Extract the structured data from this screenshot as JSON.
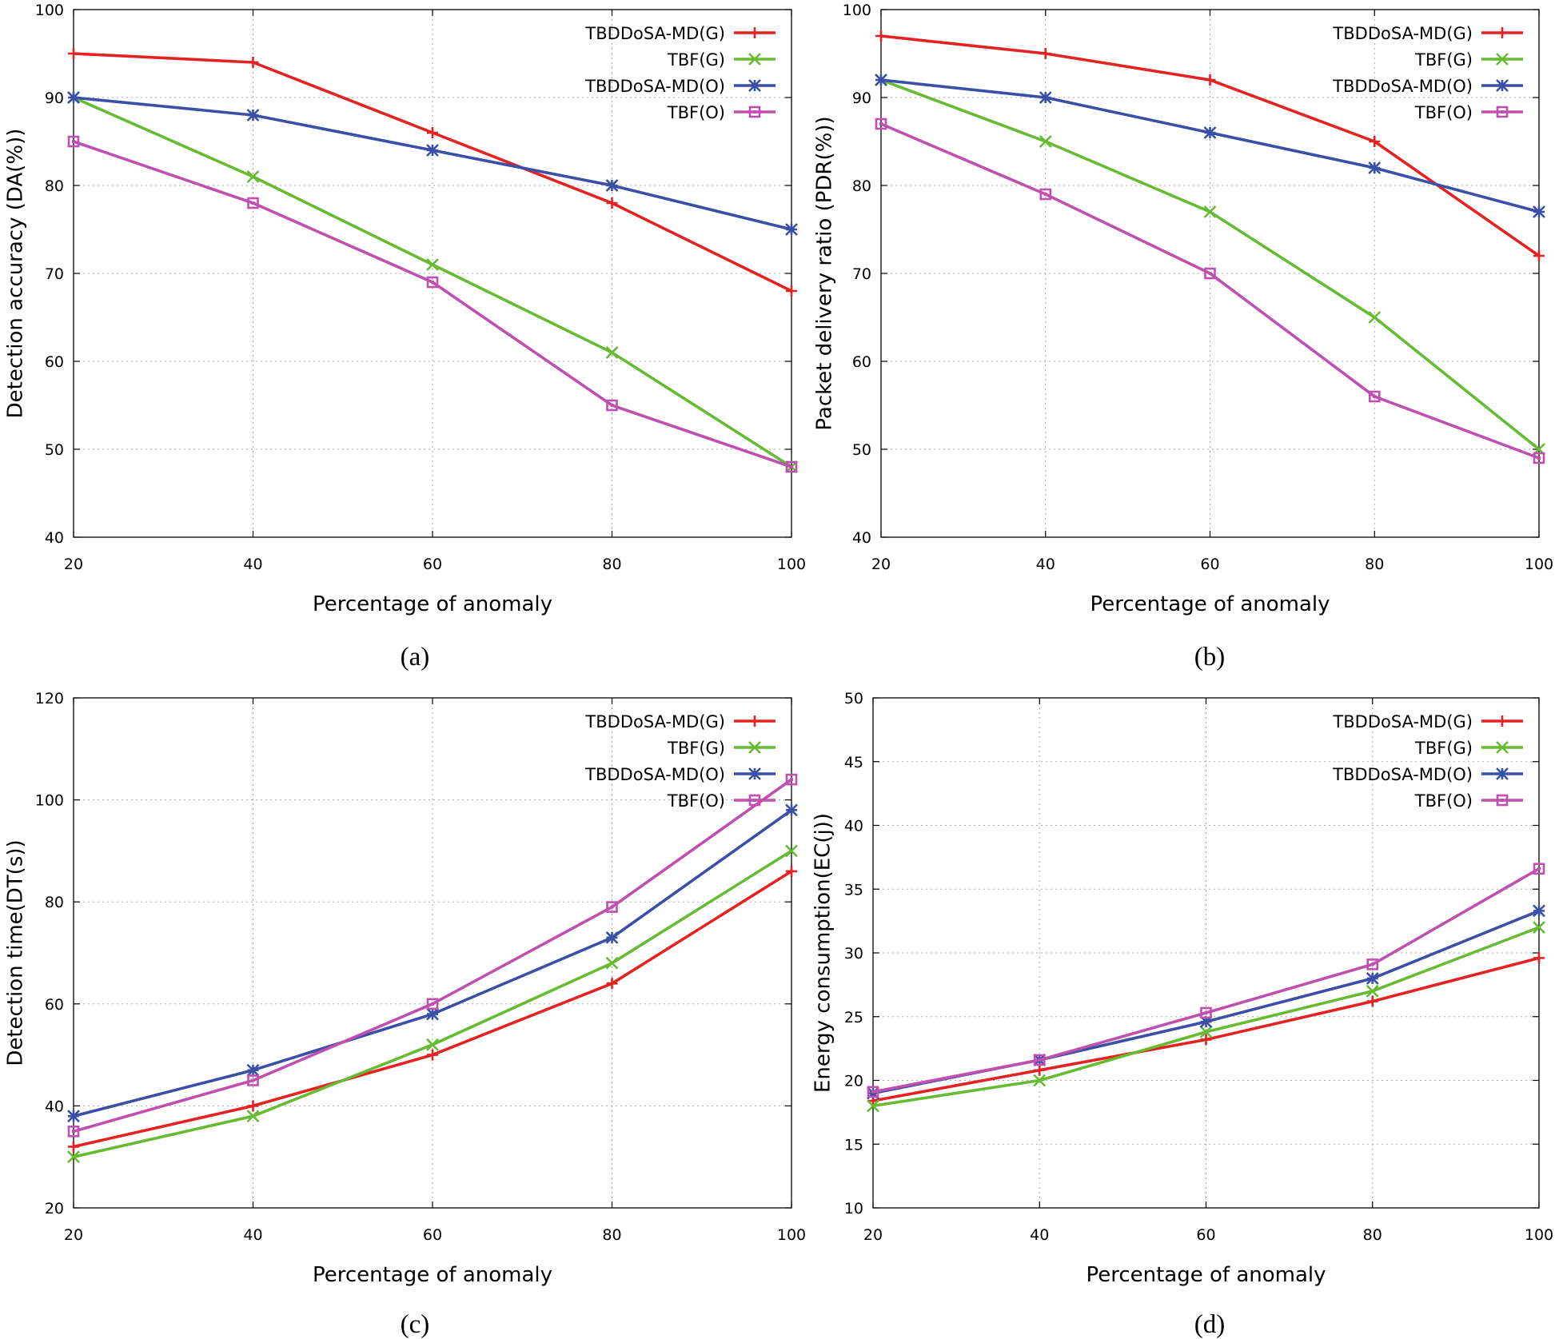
{
  "chart_data": [
    {
      "id": "a",
      "type": "line",
      "caption": "(a)",
      "xlabel": "Percentage of anomaly",
      "ylabel": "Detection accuracy (DA(%))",
      "x": [
        20,
        40,
        60,
        80,
        100
      ],
      "xticks": [
        "20",
        "40",
        "60",
        "80",
        "100"
      ],
      "yticks": [
        "40",
        "50",
        "60",
        "70",
        "80",
        "90",
        "100"
      ],
      "xlim": [
        20,
        100
      ],
      "ylim": [
        40,
        100
      ],
      "grid": true,
      "legend": "top-right",
      "series": [
        {
          "name": "TBDDoSA-MD(G)",
          "marker": "plus",
          "color": "#e52222",
          "values": [
            95,
            94,
            86,
            78,
            68
          ]
        },
        {
          "name": "TBF(G)",
          "marker": "cross",
          "color": "#66bb33",
          "values": [
            90,
            81,
            71,
            61,
            48
          ]
        },
        {
          "name": "TBDDoSA-MD(O)",
          "marker": "star",
          "color": "#3a4fa6",
          "values": [
            90,
            88,
            84,
            80,
            75
          ]
        },
        {
          "name": "TBF(O)",
          "marker": "square",
          "color": "#c050b0",
          "values": [
            85,
            78,
            69,
            55,
            48
          ]
        }
      ]
    },
    {
      "id": "b",
      "type": "line",
      "caption": "(b)",
      "xlabel": "Percentage of anomaly",
      "ylabel": "Packet delivery ratio (PDR(%))",
      "x": [
        20,
        40,
        60,
        80,
        100
      ],
      "xticks": [
        "20",
        "40",
        "60",
        "80",
        "100"
      ],
      "yticks": [
        "40",
        "50",
        "60",
        "70",
        "80",
        "90",
        "100"
      ],
      "xlim": [
        20,
        100
      ],
      "ylim": [
        40,
        100
      ],
      "grid": true,
      "legend": "top-right",
      "series": [
        {
          "name": "TBDDoSA-MD(G)",
          "marker": "plus",
          "color": "#e52222",
          "values": [
            97,
            95,
            92,
            85,
            72
          ]
        },
        {
          "name": "TBF(G)",
          "marker": "cross",
          "color": "#66bb33",
          "values": [
            92,
            85,
            77,
            65,
            50
          ]
        },
        {
          "name": "TBDDoSA-MD(O)",
          "marker": "star",
          "color": "#3a4fa6",
          "values": [
            92,
            90,
            86,
            82,
            77
          ]
        },
        {
          "name": "TBF(O)",
          "marker": "square",
          "color": "#c050b0",
          "values": [
            87,
            79,
            70,
            56,
            49
          ]
        }
      ]
    },
    {
      "id": "c",
      "type": "line",
      "caption": "(c)",
      "xlabel": "Percentage of anomaly",
      "ylabel": "Detection time(DT(s))",
      "x": [
        20,
        40,
        60,
        80,
        100
      ],
      "xticks": [
        "20",
        "40",
        "60",
        "80",
        "100"
      ],
      "yticks": [
        "20",
        "40",
        "60",
        "80",
        "100",
        "120"
      ],
      "xlim": [
        20,
        100
      ],
      "ylim": [
        20,
        120
      ],
      "grid": true,
      "legend": "top-right",
      "series": [
        {
          "name": "TBDDoSA-MD(G)",
          "marker": "plus",
          "color": "#e52222",
          "values": [
            32,
            40,
            50,
            64,
            86
          ]
        },
        {
          "name": "TBF(G)",
          "marker": "cross",
          "color": "#66bb33",
          "values": [
            30,
            38,
            52,
            68,
            90
          ]
        },
        {
          "name": "TBDDoSA-MD(O)",
          "marker": "star",
          "color": "#3a4fa6",
          "values": [
            38,
            47,
            58,
            73,
            98
          ]
        },
        {
          "name": "TBF(O)",
          "marker": "square",
          "color": "#c050b0",
          "values": [
            35,
            45,
            60,
            79,
            104
          ]
        }
      ]
    },
    {
      "id": "d",
      "type": "line",
      "caption": "(d)",
      "xlabel": "Percentage of anomaly",
      "ylabel": "Energy consumption(EC(j))",
      "x": [
        20,
        40,
        60,
        80,
        100
      ],
      "xticks": [
        "20",
        "40",
        "60",
        "80",
        "100"
      ],
      "yticks": [
        "10",
        "15",
        "20",
        "25",
        "30",
        "35",
        "40",
        "45",
        "50"
      ],
      "xlim": [
        20,
        100
      ],
      "ylim": [
        10,
        50
      ],
      "grid": true,
      "legend": "top-right",
      "series": [
        {
          "name": "TBDDoSA-MD(G)",
          "marker": "plus",
          "color": "#e52222",
          "values": [
            18.4,
            20.8,
            23.2,
            26.2,
            29.6
          ]
        },
        {
          "name": "TBF(G)",
          "marker": "cross",
          "color": "#66bb33",
          "values": [
            18,
            20,
            23.8,
            27,
            32
          ]
        },
        {
          "name": "TBDDoSA-MD(O)",
          "marker": "star",
          "color": "#3a4fa6",
          "values": [
            19,
            21.6,
            24.6,
            28,
            33.3
          ]
        },
        {
          "name": "TBF(O)",
          "marker": "square",
          "color": "#c050b0",
          "values": [
            19.1,
            21.6,
            25.3,
            29.1,
            36.6
          ]
        }
      ]
    }
  ]
}
